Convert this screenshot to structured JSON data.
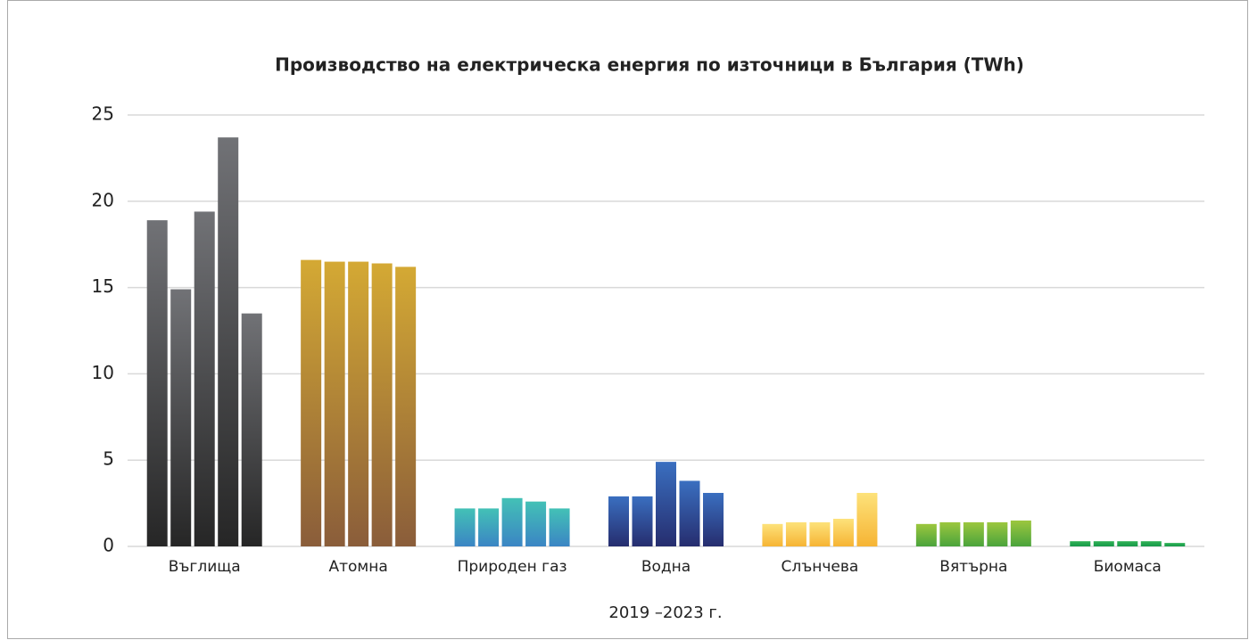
{
  "chart_data": {
    "type": "bar",
    "title": "Производство на електрическа енергия по източници в България (TWh)",
    "x_label": "2019 –2023 г.",
    "categories": [
      "Въглища",
      "Атомна",
      "Природен газ",
      "Водна",
      "Слънчева",
      "Вятърна",
      "Биомаса"
    ],
    "values": [
      [
        18.9,
        14.9,
        19.4,
        23.7,
        13.5
      ],
      [
        16.6,
        16.5,
        16.5,
        16.4,
        16.2
      ],
      [
        2.2,
        2.2,
        2.8,
        2.6,
        2.2
      ],
      [
        2.9,
        2.9,
        4.9,
        3.8,
        3.1
      ],
      [
        1.3,
        1.4,
        1.4,
        1.6,
        3.1
      ],
      [
        1.3,
        1.4,
        1.4,
        1.4,
        1.5
      ],
      [
        0.3,
        0.3,
        0.3,
        0.3,
        0.2
      ]
    ],
    "colors": [
      [
        "#717276",
        "#262626"
      ],
      [
        "#d4a934",
        "#8a5d3a"
      ],
      [
        "#43c1b6",
        "#3b85c4"
      ],
      [
        "#3a6fc0",
        "#262d6e"
      ],
      [
        "#fde27a",
        "#f6b434"
      ],
      [
        "#9cc73e",
        "#4aa33c"
      ],
      [
        "#2fb255",
        "#17994a"
      ]
    ],
    "ylim": [
      0,
      25
    ],
    "yticks": [
      0,
      5,
      10,
      15,
      20,
      25
    ],
    "grid": true
  }
}
